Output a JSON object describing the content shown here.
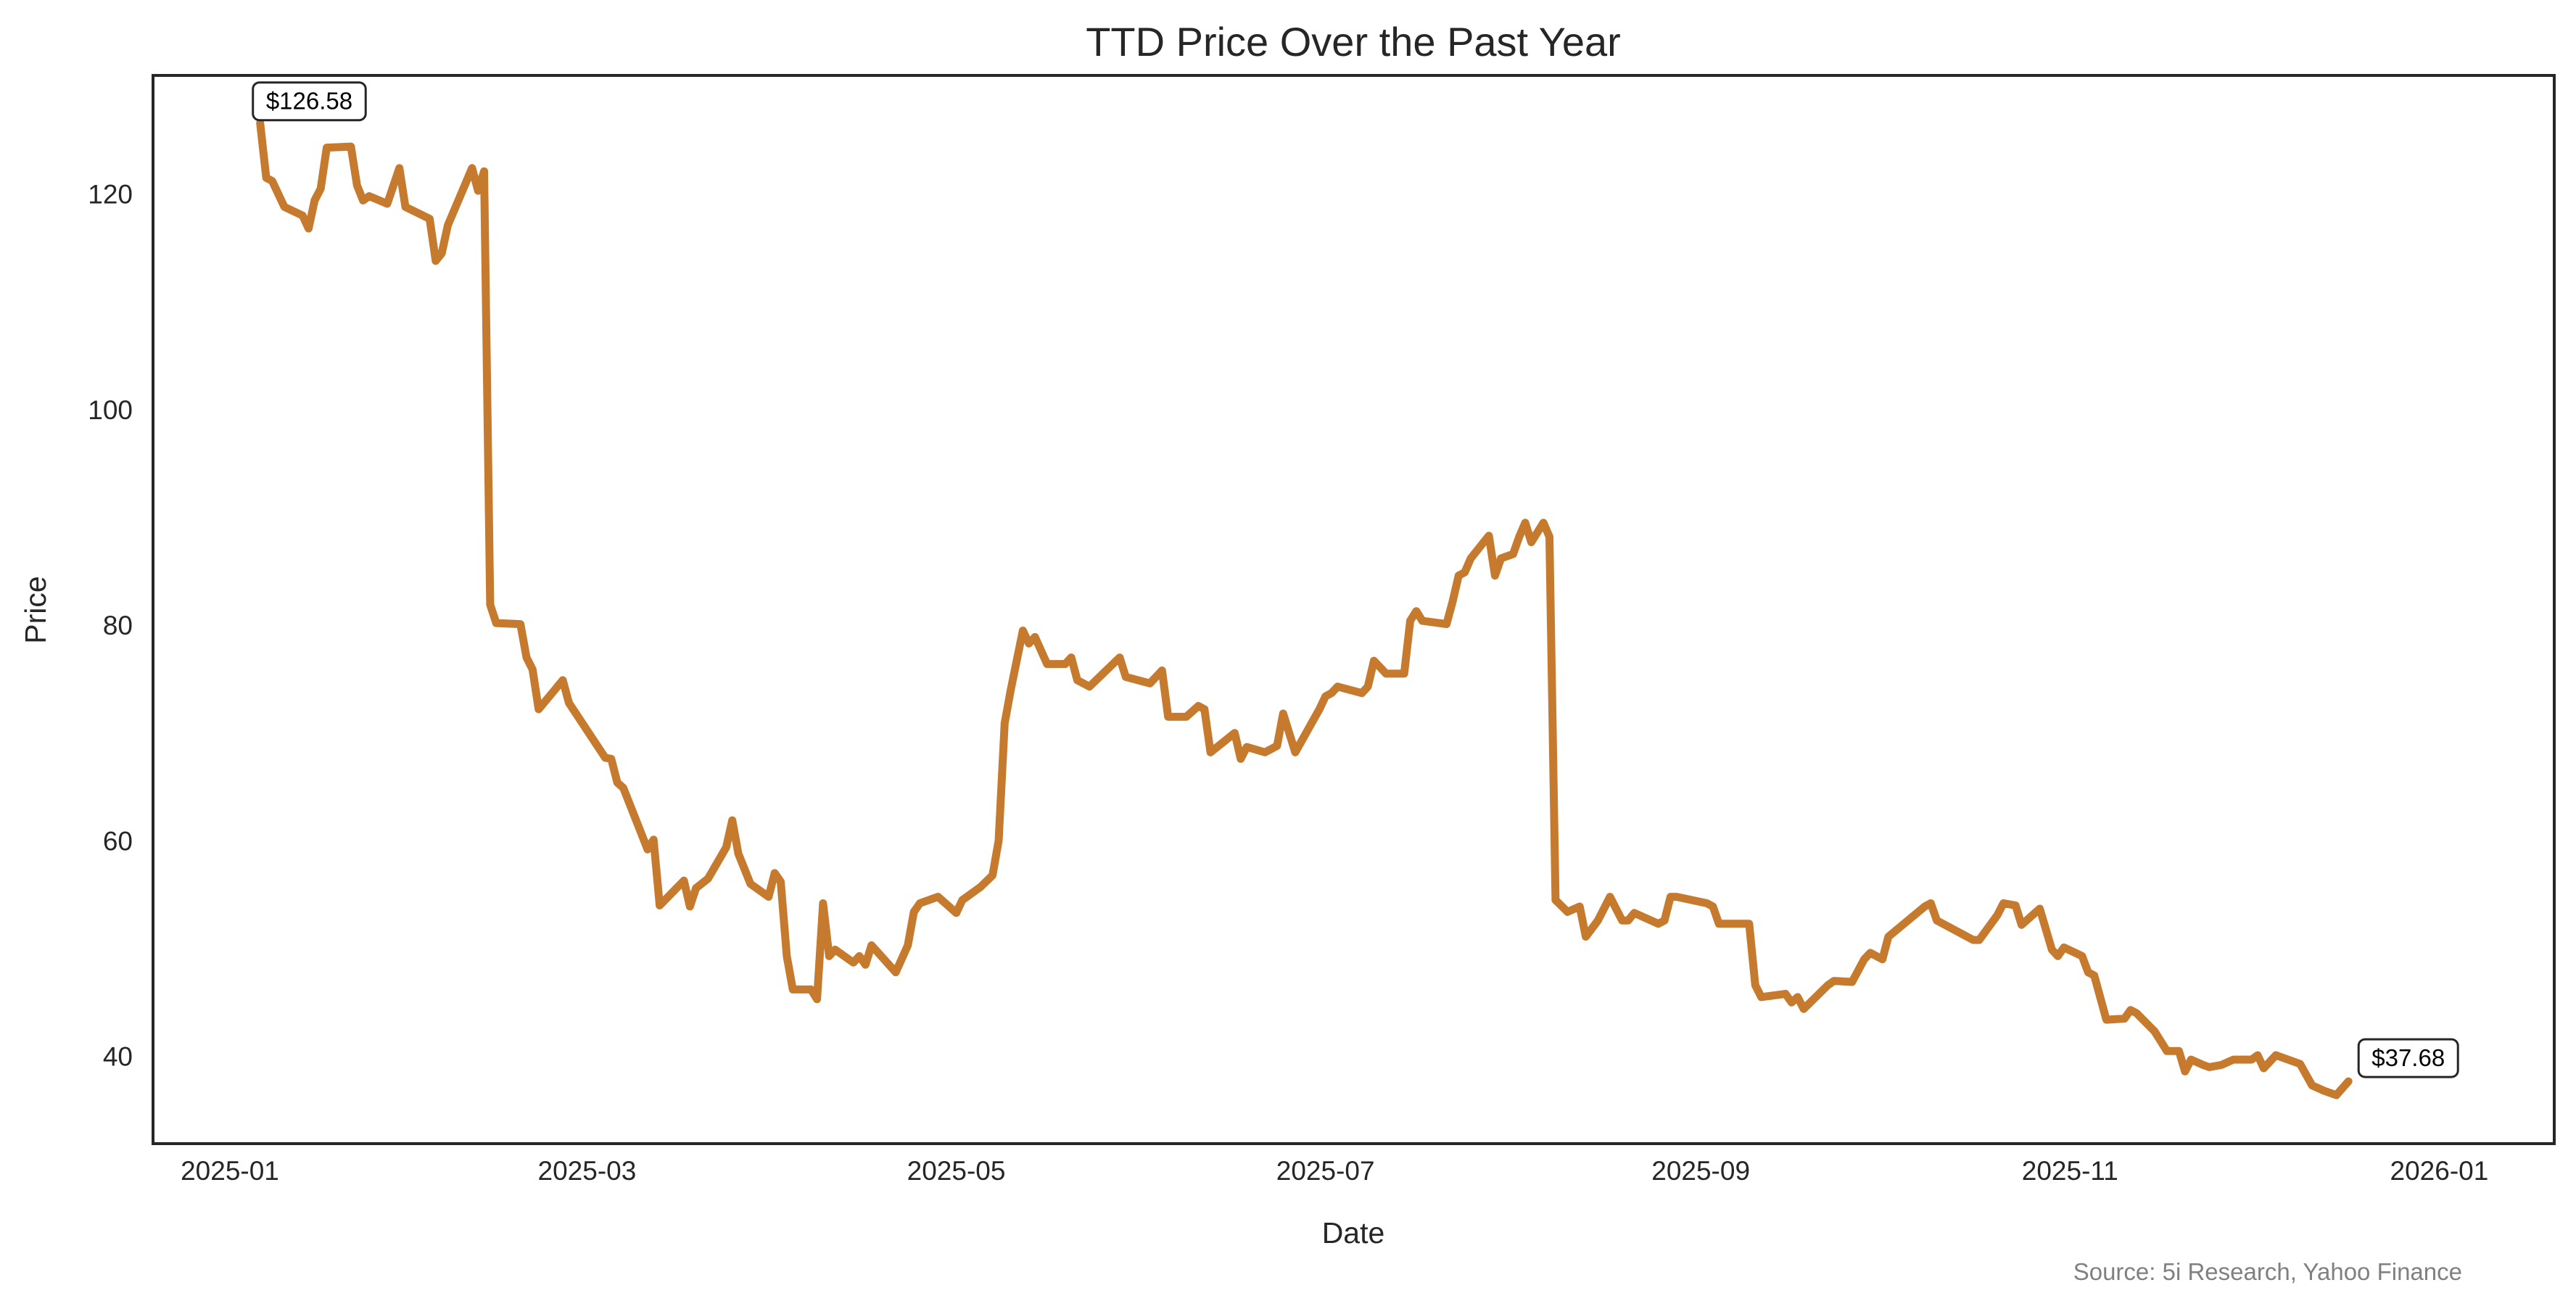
{
  "chart_data": {
    "type": "line",
    "title": "TTD Price Over the Past Year",
    "xlabel": "Date",
    "ylabel": "Price",
    "source": "Source: 5i Research, Yahoo Finance",
    "x_origin": "2025-01-01",
    "x_unit": "days since x_origin",
    "xlim": [
      -12.7,
      384
    ],
    "ylim": [
      31.9,
      131
    ],
    "grid": false,
    "line_color": "#c67a2e",
    "x_ticks": [
      {
        "label": "2025-01",
        "day": 0
      },
      {
        "label": "2025-03",
        "day": 59
      },
      {
        "label": "2025-05",
        "day": 120
      },
      {
        "label": "2025-07",
        "day": 181
      },
      {
        "label": "2025-09",
        "day": 243
      },
      {
        "label": "2025-11",
        "day": 304
      },
      {
        "label": "2026-01",
        "day": 365
      }
    ],
    "y_ticks": [
      {
        "label": "40",
        "value": 40
      },
      {
        "label": "60",
        "value": 60
      },
      {
        "label": "80",
        "value": 80
      },
      {
        "label": "100",
        "value": 100
      },
      {
        "label": "120",
        "value": 120
      }
    ],
    "annotations": [
      {
        "label": "$126.58",
        "point": "first"
      },
      {
        "label": "$37.68",
        "point": "last"
      }
    ],
    "series": [
      {
        "name": "TTD",
        "points": [
          [
            5,
            126.58
          ],
          [
            6,
            121.5
          ],
          [
            7,
            121.2
          ],
          [
            9,
            118.8
          ],
          [
            12,
            118.0
          ],
          [
            13,
            116.8
          ],
          [
            14,
            119.4
          ],
          [
            15,
            120.5
          ],
          [
            16,
            124.3
          ],
          [
            20,
            124.4
          ],
          [
            21,
            120.8
          ],
          [
            22,
            119.4
          ],
          [
            23,
            119.8
          ],
          [
            26,
            119.1
          ],
          [
            28,
            122.4
          ],
          [
            29,
            118.8
          ],
          [
            33,
            117.7
          ],
          [
            34,
            113.8
          ],
          [
            35,
            114.5
          ],
          [
            36,
            117.1
          ],
          [
            40,
            122.4
          ],
          [
            41,
            120.3
          ],
          [
            42,
            122.1
          ],
          [
            43,
            81.9
          ],
          [
            44,
            80.2
          ],
          [
            48,
            80.1
          ],
          [
            49,
            77.0
          ],
          [
            50,
            75.9
          ],
          [
            51,
            72.2
          ],
          [
            55,
            74.9
          ],
          [
            56,
            72.8
          ],
          [
            62,
            67.7
          ],
          [
            63,
            67.6
          ],
          [
            64,
            65.4
          ],
          [
            65,
            64.9
          ],
          [
            69,
            59.2
          ],
          [
            70,
            60.1
          ],
          [
            71,
            54.0
          ],
          [
            75,
            56.3
          ],
          [
            76,
            53.9
          ],
          [
            77,
            55.6
          ],
          [
            79,
            56.5
          ],
          [
            82,
            59.4
          ],
          [
            83,
            61.9
          ],
          [
            84,
            58.8
          ],
          [
            86,
            56.0
          ],
          [
            89,
            54.8
          ],
          [
            90,
            57.0
          ],
          [
            91,
            56.2
          ],
          [
            92,
            49.3
          ],
          [
            93,
            46.2
          ],
          [
            96,
            46.2
          ],
          [
            97,
            45.3
          ],
          [
            98,
            54.2
          ],
          [
            99,
            49.3
          ],
          [
            100,
            49.9
          ],
          [
            103,
            48.7
          ],
          [
            104,
            49.3
          ],
          [
            105,
            48.5
          ],
          [
            106,
            50.3
          ],
          [
            110,
            47.8
          ],
          [
            112,
            50.3
          ],
          [
            113,
            53.4
          ],
          [
            114,
            54.2
          ],
          [
            117,
            54.8
          ],
          [
            120,
            53.3
          ],
          [
            121,
            54.5
          ],
          [
            124,
            55.7
          ],
          [
            126,
            56.8
          ],
          [
            127,
            60.0
          ],
          [
            128,
            70.9
          ],
          [
            129,
            74.0
          ],
          [
            131,
            79.5
          ],
          [
            132,
            78.3
          ],
          [
            133,
            78.9
          ],
          [
            135,
            76.4
          ],
          [
            138,
            76.4
          ],
          [
            139,
            77.0
          ],
          [
            140,
            74.9
          ],
          [
            142,
            74.3
          ],
          [
            147,
            77.0
          ],
          [
            148,
            75.2
          ],
          [
            152,
            74.6
          ],
          [
            154,
            75.8
          ],
          [
            155,
            71.5
          ],
          [
            158,
            71.5
          ],
          [
            160,
            72.5
          ],
          [
            161,
            72.2
          ],
          [
            162,
            68.2
          ],
          [
            166,
            70.0
          ],
          [
            167,
            67.6
          ],
          [
            168,
            68.7
          ],
          [
            171,
            68.2
          ],
          [
            173,
            68.8
          ],
          [
            174,
            71.8
          ],
          [
            176,
            68.2
          ],
          [
            180,
            72.2
          ],
          [
            181,
            73.4
          ],
          [
            182,
            73.7
          ],
          [
            183,
            74.3
          ],
          [
            187,
            73.7
          ],
          [
            188,
            74.3
          ],
          [
            189,
            76.7
          ],
          [
            191,
            75.5
          ],
          [
            194,
            75.5
          ],
          [
            195,
            80.4
          ],
          [
            196,
            81.3
          ],
          [
            197,
            80.4
          ],
          [
            201,
            80.1
          ],
          [
            202,
            82.2
          ],
          [
            203,
            84.6
          ],
          [
            204,
            84.9
          ],
          [
            205,
            86.2
          ],
          [
            208,
            88.3
          ],
          [
            209,
            84.6
          ],
          [
            210,
            86.2
          ],
          [
            212,
            86.6
          ],
          [
            213,
            88.2
          ],
          [
            214,
            89.5
          ],
          [
            215,
            87.7
          ],
          [
            217,
            89.5
          ],
          [
            218,
            88.2
          ],
          [
            219,
            54.5
          ],
          [
            221,
            53.4
          ],
          [
            223,
            53.9
          ],
          [
            224,
            51.1
          ],
          [
            226,
            52.6
          ],
          [
            228,
            54.8
          ],
          [
            230,
            52.6
          ],
          [
            231,
            52.6
          ],
          [
            232,
            53.3
          ],
          [
            236,
            52.3
          ],
          [
            237,
            52.6
          ],
          [
            238,
            54.8
          ],
          [
            239,
            54.8
          ],
          [
            244,
            54.2
          ],
          [
            245,
            53.9
          ],
          [
            246,
            52.3
          ],
          [
            250,
            52.3
          ],
          [
            251,
            52.3
          ],
          [
            252,
            46.6
          ],
          [
            253,
            45.5
          ],
          [
            257,
            45.8
          ],
          [
            258,
            45.0
          ],
          [
            259,
            45.5
          ],
          [
            260,
            44.4
          ],
          [
            264,
            46.6
          ],
          [
            265,
            47.0
          ],
          [
            268,
            46.9
          ],
          [
            270,
            49.0
          ],
          [
            271,
            49.6
          ],
          [
            273,
            49.0
          ],
          [
            274,
            51.1
          ],
          [
            280,
            53.9
          ],
          [
            281,
            54.2
          ],
          [
            282,
            52.6
          ],
          [
            285,
            51.7
          ],
          [
            287,
            51.1
          ],
          [
            288,
            50.8
          ],
          [
            289,
            50.8
          ],
          [
            292,
            53.1
          ],
          [
            293,
            54.2
          ],
          [
            295,
            54.0
          ],
          [
            296,
            52.2
          ],
          [
            299,
            53.7
          ],
          [
            301,
            49.9
          ],
          [
            302,
            49.3
          ],
          [
            303,
            50.1
          ],
          [
            306,
            49.3
          ],
          [
            307,
            47.8
          ],
          [
            308,
            47.5
          ],
          [
            310,
            43.4
          ],
          [
            313,
            43.5
          ],
          [
            314,
            44.3
          ],
          [
            315,
            44.0
          ],
          [
            318,
            42.3
          ],
          [
            319,
            41.4
          ],
          [
            320,
            40.5
          ],
          [
            322,
            40.5
          ],
          [
            323,
            38.6
          ],
          [
            324,
            39.7
          ],
          [
            326,
            39.2
          ],
          [
            327,
            39.0
          ],
          [
            329,
            39.2
          ],
          [
            331,
            39.7
          ],
          [
            334,
            39.7
          ],
          [
            335,
            40.1
          ],
          [
            336,
            38.9
          ],
          [
            338,
            40.1
          ],
          [
            341,
            39.5
          ],
          [
            342,
            39.3
          ],
          [
            344,
            37.3
          ],
          [
            346,
            36.8
          ],
          [
            348,
            36.4
          ],
          [
            350,
            37.68
          ]
        ]
      }
    ]
  }
}
